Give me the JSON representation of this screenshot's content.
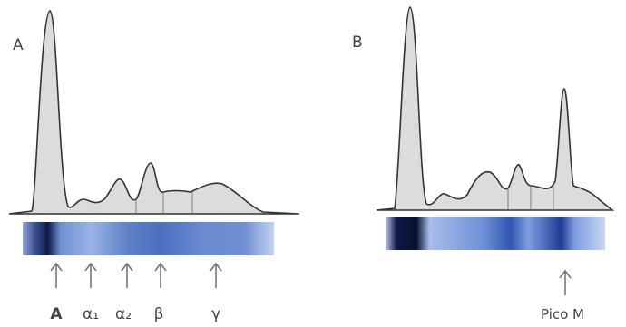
{
  "panels": [
    {
      "label": "A",
      "markers": [
        "A",
        "α₁",
        "α₂",
        "β",
        "γ"
      ]
    },
    {
      "label": "B",
      "markers": [
        "Pico M"
      ]
    }
  ]
}
